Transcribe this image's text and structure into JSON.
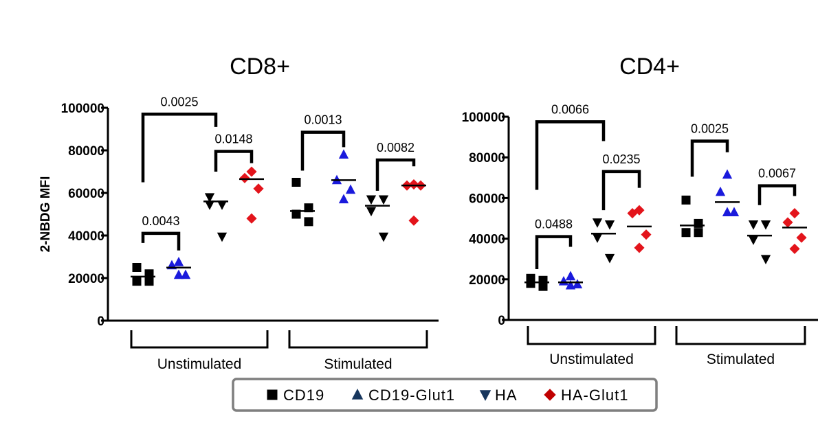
{
  "colors": {
    "axis": "#000000",
    "cd19": "#000000",
    "cd19_glut1": "#1a1adc",
    "ha": "#000000",
    "ha_glut1": "#e3141b",
    "legend_border": "#7f7f7f",
    "cd19_glut1_legend": "#17365d",
    "ha_legend": "#17365d",
    "ha_glut1_legend": "#c00000"
  },
  "legend": {
    "items": [
      {
        "key": "cd19",
        "label": "CD19",
        "marker": "square"
      },
      {
        "key": "cd19_glut1",
        "label": "CD19-Glut1",
        "marker": "triangle-up"
      },
      {
        "key": "ha",
        "label": "HA",
        "marker": "triangle-down"
      },
      {
        "key": "ha_glut1",
        "label": "HA-Glut1",
        "marker": "diamond"
      }
    ]
  },
  "chart_data": [
    {
      "type": "scatter",
      "title": "CD8+",
      "ylabel": "2-NBDG MFI",
      "ylim": [
        0,
        100000
      ],
      "yticks": [
        "0",
        "20000",
        "40000",
        "60000",
        "80000",
        "100000"
      ],
      "group_labels": [
        "Unstimulated",
        "Stimulated"
      ],
      "series": [
        {
          "name": "CD19",
          "group": "Unstimulated",
          "marker": "square",
          "color_key": "cd19",
          "values": [
            25000,
            22000,
            18500,
            18500
          ],
          "mean": 20700
        },
        {
          "name": "CD19-Glut1",
          "group": "Unstimulated",
          "marker": "triangle-up",
          "color_key": "cd19_glut1",
          "values": [
            27500,
            26000,
            21500,
            21500
          ],
          "mean": 24900
        },
        {
          "name": "HA",
          "group": "Unstimulated",
          "marker": "triangle-down",
          "color_key": "ha",
          "values": [
            58000,
            54500,
            54500,
            39500
          ],
          "mean": 56000
        },
        {
          "name": "HA-Glut1",
          "group": "Unstimulated",
          "marker": "diamond",
          "color_key": "ha_glut1",
          "values": [
            70000,
            67000,
            62000,
            48000
          ],
          "mean": 66500
        },
        {
          "name": "CD19",
          "group": "Stimulated",
          "marker": "square",
          "color_key": "cd19",
          "values": [
            65000,
            53000,
            50000,
            46500
          ],
          "mean": 51500
        },
        {
          "name": "CD19-Glut1",
          "group": "Stimulated",
          "marker": "triangle-up",
          "color_key": "cd19_glut1",
          "values": [
            78000,
            66000,
            61500,
            57000
          ],
          "mean": 66000
        },
        {
          "name": "HA",
          "group": "Stimulated",
          "marker": "triangle-down",
          "color_key": "ha",
          "values": [
            57000,
            57000,
            51500,
            39500
          ],
          "mean": 54000
        },
        {
          "name": "HA-Glut1",
          "group": "Stimulated",
          "marker": "diamond",
          "color_key": "ha_glut1",
          "values": [
            64000,
            63500,
            63500,
            47000
          ],
          "mean": 63500
        }
      ],
      "comparisons": [
        {
          "from": 0,
          "to": 1,
          "label": "0.0043",
          "top": 41000,
          "left_drop": 0,
          "right_drop": 33000
        },
        {
          "from": 0,
          "to": 2,
          "label": "0.0025",
          "top": 97000,
          "left_drop": 65000,
          "right_drop": 91000
        },
        {
          "from": 2,
          "to": 3,
          "label": "0.0148",
          "top": 79500,
          "left_drop": 70000,
          "right_drop": 74000
        },
        {
          "from": 4,
          "to": 5,
          "label": "0.0013",
          "top": 88500,
          "left_drop": 70500,
          "right_drop": 81500
        },
        {
          "from": 6,
          "to": 7,
          "label": "0.0082",
          "top": 75500,
          "left_drop": 61000,
          "right_drop": 72500
        }
      ]
    },
    {
      "type": "scatter",
      "title": "CD4+",
      "ylabel": "",
      "ylim": [
        0,
        100000
      ],
      "yticks": [
        "0",
        "20000",
        "40000",
        "60000",
        "80000",
        "100000"
      ],
      "group_labels": [
        "Unstimulated",
        "Stimulated"
      ],
      "series": [
        {
          "name": "CD19",
          "group": "Unstimulated",
          "marker": "square",
          "color_key": "cd19",
          "values": [
            20500,
            19500,
            18000,
            16500
          ],
          "mean": 18500
        },
        {
          "name": "CD19-Glut1",
          "group": "Unstimulated",
          "marker": "triangle-up",
          "color_key": "cd19_glut1",
          "values": [
            21500,
            19000,
            17500,
            17000
          ],
          "mean": 18500
        },
        {
          "name": "HA",
          "group": "Unstimulated",
          "marker": "triangle-down",
          "color_key": "ha",
          "values": [
            48000,
            47000,
            40500,
            30500
          ],
          "mean": 42500
        },
        {
          "name": "HA-Glut1",
          "group": "Unstimulated",
          "marker": "diamond",
          "color_key": "ha_glut1",
          "values": [
            54000,
            52500,
            42000,
            35500
          ],
          "mean": 46000
        },
        {
          "name": "CD19",
          "group": "Stimulated",
          "marker": "square",
          "color_key": "cd19",
          "values": [
            59000,
            47500,
            43000,
            43000
          ],
          "mean": 46500
        },
        {
          "name": "CD19-Glut1",
          "group": "Stimulated",
          "marker": "triangle-up",
          "color_key": "cd19_glut1",
          "values": [
            71500,
            63000,
            53000,
            53000
          ],
          "mean": 58000
        },
        {
          "name": "HA",
          "group": "Stimulated",
          "marker": "triangle-down",
          "color_key": "ha",
          "values": [
            47000,
            47000,
            39500,
            30000
          ],
          "mean": 41500
        },
        {
          "name": "HA-Glut1",
          "group": "Stimulated",
          "marker": "diamond",
          "color_key": "ha_glut1",
          "values": [
            52500,
            48000,
            40500,
            35000
          ],
          "mean": 45500
        }
      ],
      "comparisons": [
        {
          "from": 0,
          "to": 1,
          "label": "0.0488",
          "top": 41000,
          "left_drop": 25000,
          "right_drop": 36000
        },
        {
          "from": 0,
          "to": 2,
          "label": "0.0066",
          "top": 97500,
          "left_drop": 64000,
          "right_drop": 88000
        },
        {
          "from": 2,
          "to": 3,
          "label": "0.0235",
          "top": 73000,
          "left_drop": 54000,
          "right_drop": 65000
        },
        {
          "from": 4,
          "to": 5,
          "label": "0.0025",
          "top": 88000,
          "left_drop": 70500,
          "right_drop": 82500
        },
        {
          "from": 6,
          "to": 7,
          "label": "0.0067",
          "top": 66000,
          "left_drop": 56500,
          "right_drop": 61000
        }
      ]
    }
  ]
}
